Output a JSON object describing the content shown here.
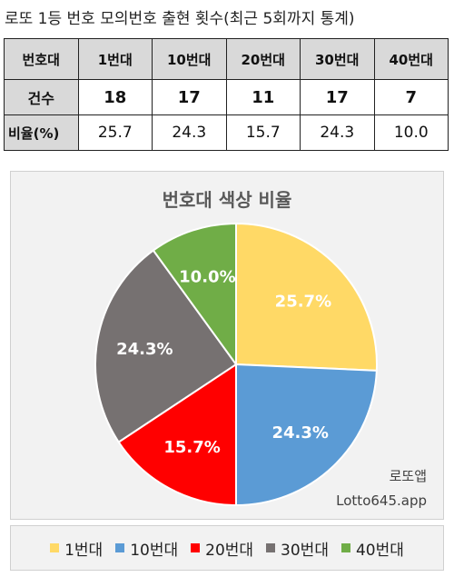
{
  "page_title": "로또 1등 번호 모의번호 출현 횟수(최근 5회까지 통계)",
  "table": {
    "headers": [
      "번호대",
      "1번대",
      "10번대",
      "20번대",
      "30번대",
      "40번대"
    ],
    "rows": [
      {
        "label": "건수",
        "values": [
          "18",
          "17",
          "11",
          "17",
          "7"
        ]
      },
      {
        "label": "비율(%)",
        "values": [
          "25.7",
          "24.3",
          "15.7",
          "24.3",
          "10.0"
        ]
      }
    ]
  },
  "chart_data": {
    "type": "pie",
    "title": "번호대 색상 비율",
    "categories": [
      "1번대",
      "10번대",
      "20번대",
      "30번대",
      "40번대"
    ],
    "values": [
      25.7,
      24.3,
      15.7,
      24.3,
      10.0
    ],
    "labels": [
      "25.7%",
      "24.3%",
      "15.7%",
      "24.3%",
      "10.0%"
    ],
    "colors": [
      "#FFD966",
      "#5B9BD5",
      "#FF0000",
      "#767171",
      "#70AD47"
    ],
    "legend_position": "bottom",
    "watermark": [
      "로또앱",
      "Lotto645.app"
    ]
  }
}
